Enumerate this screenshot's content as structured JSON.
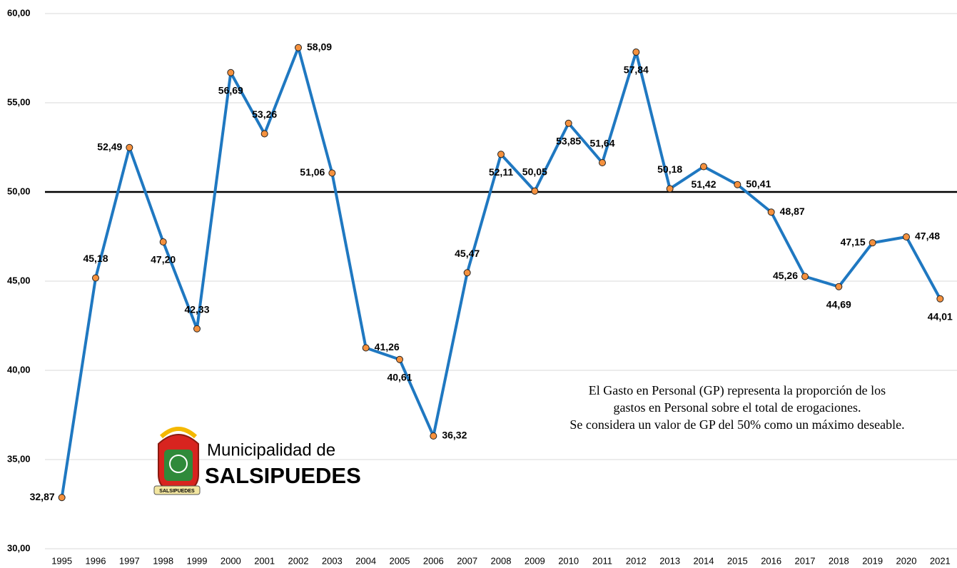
{
  "chart_data": {
    "type": "line",
    "categories": [
      "1995",
      "1996",
      "1997",
      "1998",
      "1999",
      "2000",
      "2001",
      "2002",
      "2003",
      "2004",
      "2005",
      "2006",
      "2007",
      "2008",
      "2009",
      "2010",
      "2011",
      "2012",
      "2013",
      "2014",
      "2015",
      "2016",
      "2017",
      "2018",
      "2019",
      "2020",
      "2021"
    ],
    "series": [
      {
        "name": "Gasto en Personal",
        "color": "#1f78c1",
        "marker_color": "#f5913e",
        "values": [
          32.87,
          45.18,
          52.49,
          47.2,
          42.33,
          56.69,
          53.26,
          58.09,
          51.06,
          41.26,
          40.61,
          36.32,
          45.47,
          52.11,
          50.05,
          53.85,
          51.64,
          57.84,
          50.18,
          51.42,
          50.41,
          48.87,
          45.26,
          44.69,
          47.15,
          47.48,
          44.01
        ],
        "value_labels": [
          "32,87",
          "45,18",
          "52,49",
          "47,20",
          "42,33",
          "56,69",
          "53,26",
          "58,09",
          "51,06",
          "41,26",
          "40,61",
          "36,32",
          "45,47",
          "52,11",
          "50,05",
          "53,85",
          "51,64",
          "57,84",
          "50,18",
          "51,42",
          "50,41",
          "48,87",
          "45,26",
          "44,69",
          "47,15",
          "47,48",
          "44,01"
        ]
      }
    ],
    "ylim": [
      30,
      60
    ],
    "yticks": [
      {
        "value": 30,
        "label": "30,00"
      },
      {
        "value": 35,
        "label": "35,00"
      },
      {
        "value": 40,
        "label": "40,00"
      },
      {
        "value": 45,
        "label": "45,00"
      },
      {
        "value": 50,
        "label": "50,00"
      },
      {
        "value": 55,
        "label": "55,00"
      },
      {
        "value": 60,
        "label": "60,00"
      }
    ],
    "grid": true,
    "reference_line": 50,
    "annotation": [
      "El Gasto en Personal (GP) representa la  proporción de los",
      "gastos en Personal sobre el total de erogaciones.",
      "Se considera un valor de GP del 50% como un máximo deseable."
    ],
    "logo": {
      "line1": "Municipalidad de",
      "line2": "SALSIPUEDES",
      "badge": "SALSIPUEDES"
    }
  }
}
